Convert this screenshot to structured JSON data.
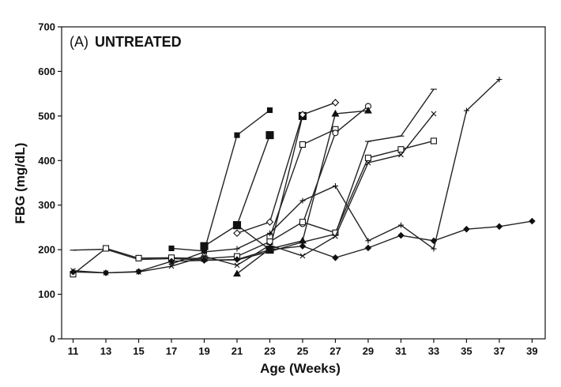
{
  "chart_data": {
    "type": "line",
    "title_prefix": "(A)",
    "title_main": "UNTREATED",
    "xlabel": "Age (Weeks)",
    "ylabel": "FBG (mg/dL)",
    "xlim": [
      10.3,
      39.8
    ],
    "ylim": [
      0,
      700
    ],
    "xticks": [
      11,
      13,
      15,
      17,
      19,
      21,
      23,
      25,
      27,
      29,
      31,
      33,
      35,
      37,
      39
    ],
    "yticks": [
      0,
      100,
      200,
      300,
      400,
      500,
      600,
      700
    ],
    "grid": false,
    "legend": false,
    "series": [
      {
        "marker": "filled-square-small",
        "x": [
          17,
          19,
          21,
          23
        ],
        "y": [
          203,
          197,
          457,
          513
        ]
      },
      {
        "marker": "filled-square-large",
        "x": [
          19,
          21,
          23
        ],
        "y": [
          208,
          255,
          457
        ]
      },
      {
        "marker": "filled-square-large",
        "x": [
          21,
          23,
          25
        ],
        "y": [
          255,
          200,
          500
        ]
      },
      {
        "marker": "open-diamond",
        "x": [
          21,
          23,
          25,
          27
        ],
        "y": [
          237,
          262,
          503,
          530
        ]
      },
      {
        "marker": "open-square",
        "x": [
          23,
          25,
          27
        ],
        "y": [
          228,
          436,
          470
        ]
      },
      {
        "marker": "open-circle",
        "x": [
          25,
          27,
          29
        ],
        "y": [
          258,
          462,
          522
        ]
      },
      {
        "marker": "filled-triangle",
        "x": [
          21,
          23,
          25,
          27,
          29
        ],
        "y": [
          146,
          202,
          220,
          505,
          512
        ]
      },
      {
        "marker": "minus",
        "x": [
          11,
          13,
          15,
          17,
          19,
          21,
          23,
          25,
          27,
          29,
          31,
          33
        ],
        "y": [
          199,
          201,
          178,
          180,
          177,
          177,
          196,
          217,
          235,
          443,
          455,
          560
        ]
      },
      {
        "marker": "open-square",
        "x": [
          11,
          13,
          15,
          17,
          19,
          21,
          23,
          25,
          27,
          29,
          31,
          33
        ],
        "y": [
          145,
          203,
          181,
          182,
          180,
          185,
          218,
          262,
          238,
          406,
          425,
          444
        ]
      },
      {
        "marker": "x",
        "x": [
          11,
          13,
          15,
          17,
          19,
          21,
          23,
          25,
          27,
          29,
          31,
          33
        ],
        "y": [
          153,
          148,
          150,
          163,
          185,
          165,
          210,
          186,
          230,
          395,
          413,
          505
        ]
      },
      {
        "marker": "plus",
        "x": [
          17,
          19,
          21,
          23,
          25,
          27,
          29,
          31,
          33,
          35,
          37
        ],
        "y": [
          168,
          195,
          202,
          237,
          310,
          343,
          220,
          255,
          202,
          512,
          582
        ]
      },
      {
        "marker": "filled-diamond",
        "x": [
          11,
          13,
          15,
          17,
          19,
          21,
          23,
          25,
          27,
          29,
          31,
          33,
          35,
          37,
          39
        ],
        "y": [
          150,
          148,
          151,
          174,
          176,
          178,
          200,
          208,
          182,
          204,
          232,
          220,
          246,
          252,
          264
        ]
      }
    ]
  }
}
